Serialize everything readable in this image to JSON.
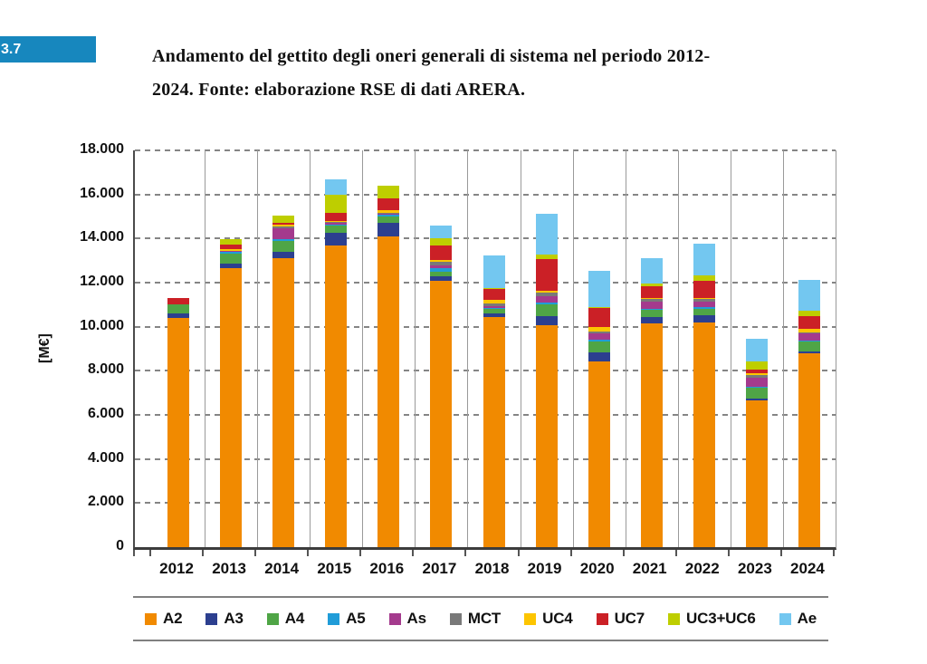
{
  "badge": {
    "label": "3.7",
    "color": "#1787BE"
  },
  "title": {
    "line1": "Andamento del gettito degli oneri generali di sistema nel periodo 2012-",
    "line2": "2024. Fonte: elaborazione RSE di dati ARERA."
  },
  "chart_data": {
    "type": "bar",
    "stacked": true,
    "title": "Andamento del gettito degli oneri generali di sistema nel periodo 2012-2024",
    "ylabel": "[M€]",
    "xlabel": "",
    "ylim": [
      0,
      18000
    ],
    "ytick_step": 2000,
    "ytick_labels": [
      "0",
      "2.000",
      "4.000",
      "6.000",
      "8.000",
      "10.000",
      "12.000",
      "14.000",
      "16.000",
      "18.000"
    ],
    "grid": "dashed-horizontal",
    "legend_position": "bottom",
    "categories": [
      "2012",
      "2013",
      "2014",
      "2015",
      "2016",
      "2017",
      "2018",
      "2019",
      "2020",
      "2021",
      "2022",
      "2023",
      "2024"
    ],
    "series": [
      {
        "name": "A2",
        "color": "#F18A00",
        "values": [
          10400,
          12650,
          13100,
          13700,
          14100,
          12100,
          10450,
          10050,
          8430,
          10150,
          10200,
          6650,
          8800
        ]
      },
      {
        "name": "A3",
        "color": "#2C3F8F",
        "values": [
          200,
          200,
          310,
          550,
          615,
          180,
          140,
          430,
          410,
          275,
          340,
          80,
          80
        ]
      },
      {
        "name": "A4",
        "color": "#4FA546",
        "values": [
          400,
          470,
          470,
          340,
          275,
          210,
          220,
          545,
          480,
          340,
          275,
          500,
          450
        ]
      },
      {
        "name": "A5",
        "color": "#209CD8",
        "values": [
          0,
          60,
          80,
          60,
          100,
          150,
          60,
          80,
          80,
          60,
          60,
          60,
          60
        ]
      },
      {
        "name": "As",
        "color": "#A43A8D",
        "values": [
          0,
          40,
          500,
          60,
          40,
          140,
          80,
          270,
          280,
          300,
          250,
          380,
          310
        ]
      },
      {
        "name": "MCT",
        "color": "#797979",
        "values": [
          0,
          30,
          80,
          40,
          40,
          180,
          100,
          180,
          120,
          120,
          120,
          150,
          60
        ]
      },
      {
        "name": "UC4",
        "color": "#FDC500",
        "values": [
          0,
          60,
          80,
          60,
          110,
          60,
          165,
          80,
          180,
          60,
          60,
          80,
          130
        ]
      },
      {
        "name": "UC7",
        "color": "#CB2026",
        "values": [
          300,
          200,
          90,
          340,
          550,
          680,
          480,
          1450,
          890,
          520,
          800,
          170,
          590
        ]
      },
      {
        "name": "UC3+UC6",
        "color": "#BECE00",
        "values": [
          0,
          280,
          345,
          850,
          550,
          300,
          60,
          180,
          40,
          135,
          235,
          340,
          230
        ]
      },
      {
        "name": "Ae",
        "color": "#73C7F0",
        "values": [
          0,
          0,
          0,
          690,
          0,
          580,
          1480,
          1880,
          1615,
          1140,
          1430,
          1050,
          1400
        ]
      }
    ]
  }
}
